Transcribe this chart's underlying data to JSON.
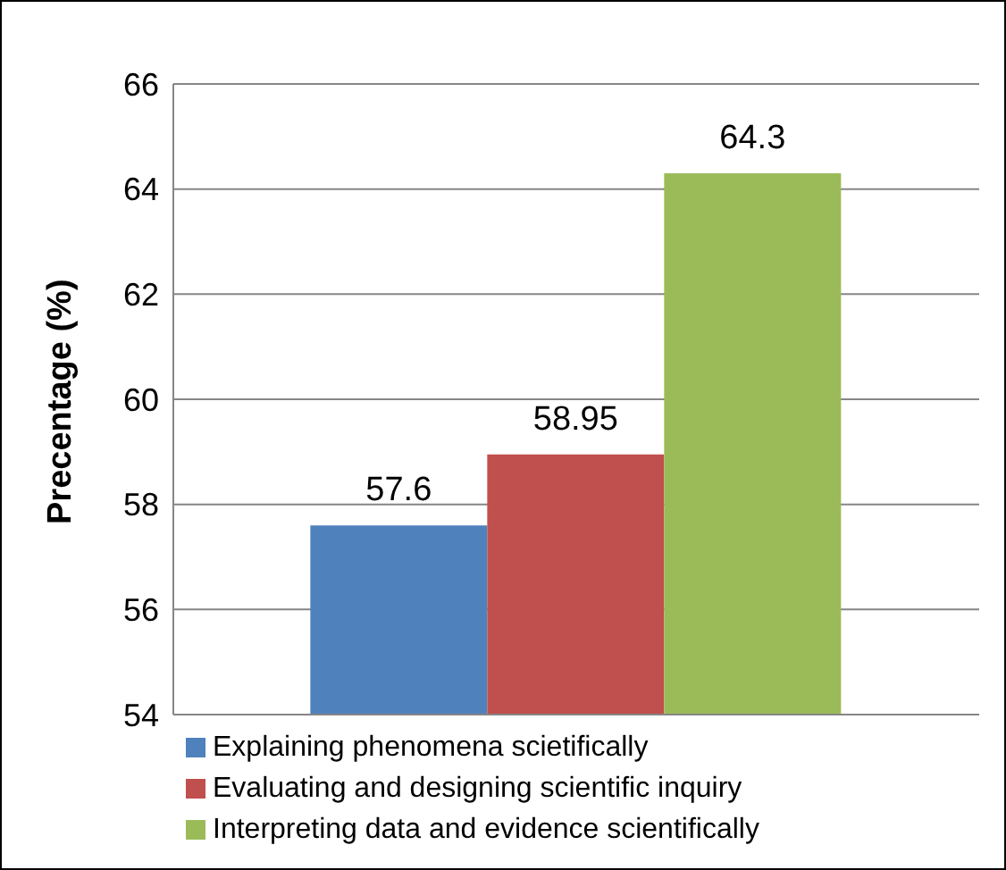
{
  "chart_data": {
    "type": "bar",
    "ylabel": "Precentage (%)",
    "categories": [
      null
    ],
    "series": [
      {
        "name": "Explaining phenomena scietifically",
        "color": "#4f81bd",
        "values": [
          57.6
        ]
      },
      {
        "name": "Evaluating and designing scientific inquiry",
        "color": "#c0504d",
        "values": [
          58.95
        ]
      },
      {
        "name": "Interpreting data and evidence scientifically",
        "color": "#9bbb59",
        "values": [
          64.3
        ]
      }
    ],
    "ylim": [
      54,
      66
    ],
    "yticks": [
      54,
      56,
      58,
      60,
      62,
      64,
      66
    ],
    "grid": "y",
    "legend": "bottom",
    "data_labels": true
  }
}
